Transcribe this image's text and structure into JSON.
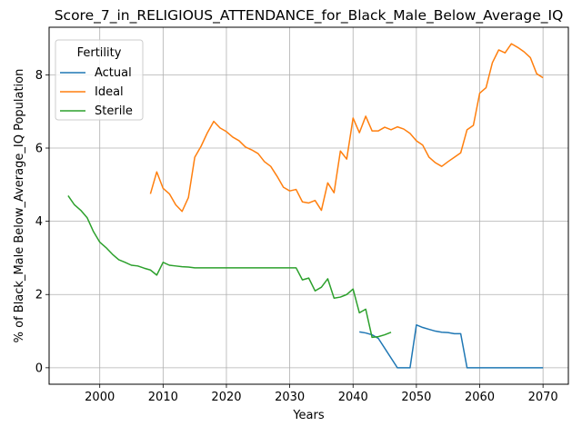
{
  "chart_data": {
    "type": "line",
    "title": "Score_7_in_RELIGIOUS_ATTENDANCE_for_Black_Male_Below_Average_IQ",
    "xlabel": "Years",
    "ylabel": "% of Black_Male Below_Average_IQ Population",
    "xlim": [
      1992,
      2074
    ],
    "ylim": [
      -0.45,
      9.3
    ],
    "xticks": [
      2000,
      2010,
      2020,
      2030,
      2040,
      2050,
      2060,
      2070
    ],
    "yticks": [
      0,
      2,
      4,
      6,
      8
    ],
    "grid": true,
    "legend": {
      "title": "Fertility",
      "position": "top-left"
    },
    "series": [
      {
        "name": "Actual",
        "color": "#1f77b4",
        "points": [
          [
            2041,
            0.98
          ],
          [
            2042,
            0.95
          ],
          [
            2043,
            0.9
          ],
          [
            2044,
            0.8
          ],
          [
            2047,
            0.0
          ],
          [
            2049,
            0.0
          ],
          [
            2050,
            1.17
          ],
          [
            2051,
            1.1
          ],
          [
            2052,
            1.05
          ],
          [
            2053,
            1.0
          ],
          [
            2054,
            0.97
          ],
          [
            2055,
            0.96
          ],
          [
            2056,
            0.93
          ],
          [
            2057,
            0.93
          ],
          [
            2058,
            0.0
          ],
          [
            2060,
            0.0
          ],
          [
            2065,
            0.0
          ],
          [
            2070,
            0.0
          ]
        ]
      },
      {
        "name": "Ideal",
        "color": "#ff7f0e",
        "points": [
          [
            2008,
            4.75
          ],
          [
            2009,
            5.35
          ],
          [
            2010,
            4.9
          ],
          [
            2011,
            4.75
          ],
          [
            2012,
            4.45
          ],
          [
            2013,
            4.27
          ],
          [
            2014,
            4.65
          ],
          [
            2015,
            5.75
          ],
          [
            2016,
            6.05
          ],
          [
            2017,
            6.42
          ],
          [
            2018,
            6.73
          ],
          [
            2019,
            6.55
          ],
          [
            2020,
            6.45
          ],
          [
            2021,
            6.3
          ],
          [
            2022,
            6.2
          ],
          [
            2023,
            6.03
          ],
          [
            2024,
            5.95
          ],
          [
            2025,
            5.85
          ],
          [
            2026,
            5.63
          ],
          [
            2027,
            5.5
          ],
          [
            2028,
            5.23
          ],
          [
            2029,
            4.93
          ],
          [
            2030,
            4.83
          ],
          [
            2031,
            4.87
          ],
          [
            2032,
            4.53
          ],
          [
            2033,
            4.5
          ],
          [
            2034,
            4.57
          ],
          [
            2035,
            4.3
          ],
          [
            2036,
            5.05
          ],
          [
            2037,
            4.78
          ],
          [
            2038,
            5.92
          ],
          [
            2039,
            5.7
          ],
          [
            2040,
            6.82
          ],
          [
            2041,
            6.42
          ],
          [
            2042,
            6.87
          ],
          [
            2043,
            6.47
          ],
          [
            2044,
            6.47
          ],
          [
            2045,
            6.57
          ],
          [
            2046,
            6.5
          ],
          [
            2047,
            6.58
          ],
          [
            2048,
            6.52
          ],
          [
            2049,
            6.4
          ],
          [
            2050,
            6.2
          ],
          [
            2051,
            6.08
          ],
          [
            2052,
            5.75
          ],
          [
            2053,
            5.6
          ],
          [
            2054,
            5.5
          ],
          [
            2055,
            5.63
          ],
          [
            2056,
            5.75
          ],
          [
            2057,
            5.87
          ],
          [
            2058,
            6.5
          ],
          [
            2059,
            6.62
          ],
          [
            2060,
            7.5
          ],
          [
            2061,
            7.65
          ],
          [
            2062,
            8.33
          ],
          [
            2063,
            8.68
          ],
          [
            2064,
            8.6
          ],
          [
            2065,
            8.85
          ],
          [
            2066,
            8.75
          ],
          [
            2067,
            8.63
          ],
          [
            2068,
            8.47
          ],
          [
            2069,
            8.03
          ],
          [
            2070,
            7.92
          ]
        ]
      },
      {
        "name": "Sterile",
        "color": "#2ca02c",
        "points": [
          [
            1995,
            4.7
          ],
          [
            1996,
            4.45
          ],
          [
            1997,
            4.3
          ],
          [
            1998,
            4.1
          ],
          [
            1999,
            3.72
          ],
          [
            2000,
            3.43
          ],
          [
            2001,
            3.28
          ],
          [
            2002,
            3.1
          ],
          [
            2003,
            2.95
          ],
          [
            2004,
            2.88
          ],
          [
            2005,
            2.8
          ],
          [
            2006,
            2.78
          ],
          [
            2007,
            2.72
          ],
          [
            2008,
            2.67
          ],
          [
            2009,
            2.53
          ],
          [
            2010,
            2.88
          ],
          [
            2011,
            2.8
          ],
          [
            2012,
            2.78
          ],
          [
            2013,
            2.76
          ],
          [
            2014,
            2.75
          ],
          [
            2015,
            2.73
          ],
          [
            2020,
            2.73
          ],
          [
            2025,
            2.73
          ],
          [
            2030,
            2.73
          ],
          [
            2031,
            2.73
          ],
          [
            2032,
            2.4
          ],
          [
            2033,
            2.45
          ],
          [
            2034,
            2.1
          ],
          [
            2035,
            2.2
          ],
          [
            2036,
            2.43
          ],
          [
            2037,
            1.9
          ],
          [
            2038,
            1.93
          ],
          [
            2039,
            2.0
          ],
          [
            2040,
            2.15
          ],
          [
            2041,
            1.5
          ],
          [
            2042,
            1.6
          ],
          [
            2043,
            0.83
          ],
          [
            2044,
            0.85
          ],
          [
            2045,
            0.9
          ],
          [
            2046,
            0.97
          ]
        ]
      }
    ]
  }
}
